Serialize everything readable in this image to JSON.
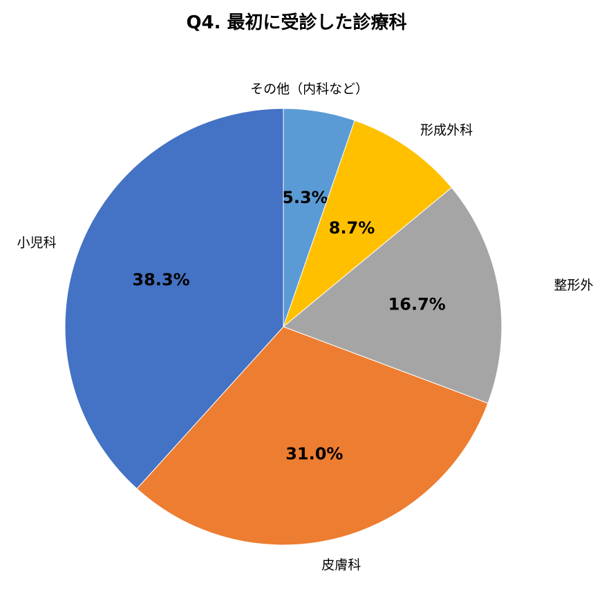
{
  "chart_data": {
    "type": "pie",
    "title": "Q4. 最初に受診した診療科",
    "start_angle_deg": 0,
    "direction": "clockwise",
    "slices": [
      {
        "label": "その他（内科など）",
        "value": 5.3,
        "value_label": "5.3%",
        "color": "#5B9BD5"
      },
      {
        "label": "形成外科",
        "value": 8.7,
        "value_label": "8.7%",
        "color": "#FFC000"
      },
      {
        "label": "整形外科",
        "value": 16.7,
        "value_label": "16.7%",
        "color": "#A5A5A5"
      },
      {
        "label": "皮膚科",
        "value": 31.0,
        "value_label": "31.0%",
        "color": "#ED7D31"
      },
      {
        "label": "小児科",
        "value": 38.3,
        "value_label": "38.3%",
        "color": "#4472C4"
      }
    ]
  }
}
